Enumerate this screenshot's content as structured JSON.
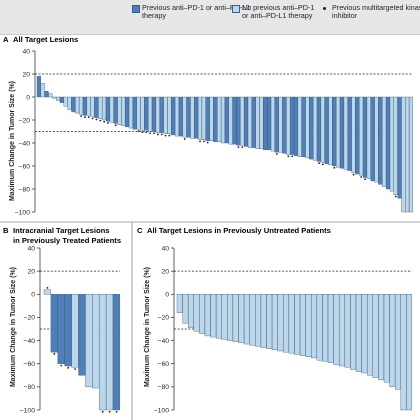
{
  "legend": {
    "previous_label": "Previous anti–PD-1 or anti–PD-L1 therapy",
    "no_previous_label": "No previous anti–PD-1 or anti–PD-L1 therapy",
    "dot_label": "Previous multitargeted kinase inhibitor"
  },
  "colors": {
    "previous": "#4f7fb8",
    "no_previous": "#bcd7ea",
    "stroke": "#2f4d70"
  },
  "chart_data": [
    {
      "type": "bar",
      "panel": "A",
      "title": "All Target Lesions",
      "ylabel": "Maximum Change in Tumor Size (%)",
      "ylim": [
        -100,
        40
      ],
      "yticks": [
        40,
        20,
        0,
        -20,
        -40,
        -60,
        -80,
        -100
      ],
      "reference_lines": [
        20,
        -30
      ],
      "values": [
        18,
        12,
        5,
        3,
        -1,
        -3,
        -5,
        -8,
        -11,
        -13,
        -14,
        -15,
        -16,
        -16,
        -17,
        -18,
        -19,
        -20,
        -21,
        -22,
        -23,
        -24,
        -25,
        -26,
        -27,
        -28,
        -28,
        -29,
        -29,
        -30,
        -30,
        -31,
        -31,
        -32,
        -32,
        -33,
        -34,
        -34,
        -35,
        -35,
        -36,
        -36,
        -37,
        -37,
        -38,
        -38,
        -39,
        -39,
        -40,
        -40,
        -41,
        -41,
        -42,
        -42,
        -43,
        -44,
        -44,
        -45,
        -45,
        -46,
        -46,
        -47,
        -48,
        -48,
        -49,
        -50,
        -50,
        -51,
        -52,
        -52,
        -53,
        -54,
        -55,
        -56,
        -57,
        -58,
        -59,
        -60,
        -61,
        -62,
        -63,
        -64,
        -66,
        -67,
        -68,
        -70,
        -71,
        -73,
        -74,
        -76,
        -78,
        -80,
        -82,
        -85,
        -88,
        -100,
        -100,
        -100
      ],
      "previous_flags": [
        1,
        0,
        1,
        0,
        0,
        0,
        1,
        0,
        0,
        1,
        0,
        0,
        1,
        0,
        0,
        1,
        0,
        0,
        1,
        0,
        1,
        0,
        0,
        1,
        0,
        1,
        0,
        0,
        1,
        0,
        1,
        0,
        1,
        0,
        0,
        1,
        0,
        1,
        0,
        1,
        0,
        1,
        0,
        0,
        1,
        0,
        1,
        0,
        0,
        1,
        0,
        1,
        1,
        0,
        1,
        0,
        1,
        0,
        0,
        1,
        1,
        0,
        1,
        0,
        1,
        0,
        1,
        1,
        0,
        1,
        0,
        1,
        0,
        1,
        0,
        1,
        0,
        1,
        0,
        1,
        0,
        1,
        0,
        1,
        0,
        1,
        0,
        1,
        0,
        1,
        0,
        1,
        0,
        0,
        1,
        0,
        0,
        0
      ],
      "kinase_flags": [
        0,
        0,
        0,
        0,
        0,
        0,
        0,
        0,
        0,
        0,
        0,
        1,
        1,
        1,
        1,
        1,
        1,
        1,
        1,
        0,
        1,
        0,
        0,
        0,
        0,
        0,
        1,
        1,
        1,
        1,
        1,
        1,
        1,
        1,
        1,
        0,
        0,
        0,
        1,
        0,
        0,
        0,
        1,
        1,
        1,
        0,
        0,
        0,
        0,
        0,
        0,
        0,
        1,
        1,
        0,
        0,
        0,
        0,
        0,
        0,
        0,
        0,
        1,
        0,
        0,
        1,
        1,
        0,
        0,
        0,
        0,
        0,
        0,
        1,
        1,
        0,
        0,
        1,
        0,
        0,
        0,
        0,
        1,
        0,
        1,
        1,
        0,
        0,
        0,
        0,
        0,
        0,
        0,
        1,
        0,
        0,
        0,
        0
      ]
    },
    {
      "type": "bar",
      "panel": "B",
      "title": "Intracranial Target Lesions in Previously Treated Patients",
      "ylabel": "Maximum Change in Tumor Size (%)",
      "ylim": [
        -100,
        40
      ],
      "yticks": [
        40,
        20,
        0,
        -20,
        -40,
        -60,
        -80,
        -100
      ],
      "reference_lines": [
        20,
        -30
      ],
      "values": [
        4,
        -50,
        -60,
        -62,
        -63,
        -70,
        -80,
        -81,
        -100,
        -100,
        -100
      ],
      "previous_flags": [
        0,
        1,
        1,
        1,
        0,
        1,
        0,
        0,
        0,
        0,
        1
      ],
      "kinase_flags": [
        1,
        1,
        1,
        1,
        1,
        0,
        0,
        0,
        1,
        1,
        1
      ]
    },
    {
      "type": "bar",
      "panel": "C",
      "title": "All Target Lesions in Previously Untreated Patients",
      "ylabel": "Maximum Change in Tumor Size (%)",
      "ylim": [
        -100,
        40
      ],
      "yticks": [
        40,
        20,
        0,
        -20,
        -40,
        -60,
        -80,
        -100
      ],
      "reference_lines": [
        20,
        -30
      ],
      "values": [
        -16,
        -25,
        -29,
        -32,
        -34,
        -36,
        -37,
        -38,
        -39,
        -40,
        -41,
        -42,
        -43,
        -44,
        -45,
        -46,
        -47,
        -48,
        -49,
        -50,
        -51,
        -52,
        -53,
        -54,
        -55,
        -57,
        -58,
        -59,
        -61,
        -62,
        -63,
        -65,
        -67,
        -68,
        -70,
        -72,
        -74,
        -76,
        -80,
        -82,
        -100,
        -100
      ],
      "previous_flags": [
        0,
        0,
        0,
        0,
        0,
        0,
        0,
        0,
        0,
        0,
        0,
        0,
        0,
        0,
        0,
        0,
        0,
        0,
        0,
        0,
        0,
        0,
        0,
        0,
        0,
        0,
        0,
        0,
        0,
        0,
        0,
        0,
        0,
        0,
        0,
        0,
        0,
        0,
        0,
        0,
        0,
        0
      ],
      "kinase_flags": [
        0,
        0,
        0,
        0,
        0,
        0,
        0,
        0,
        0,
        0,
        0,
        0,
        0,
        0,
        0,
        0,
        0,
        0,
        0,
        0,
        0,
        0,
        0,
        0,
        0,
        0,
        0,
        0,
        0,
        0,
        0,
        0,
        0,
        0,
        0,
        0,
        0,
        0,
        0,
        0,
        0,
        0
      ]
    }
  ]
}
